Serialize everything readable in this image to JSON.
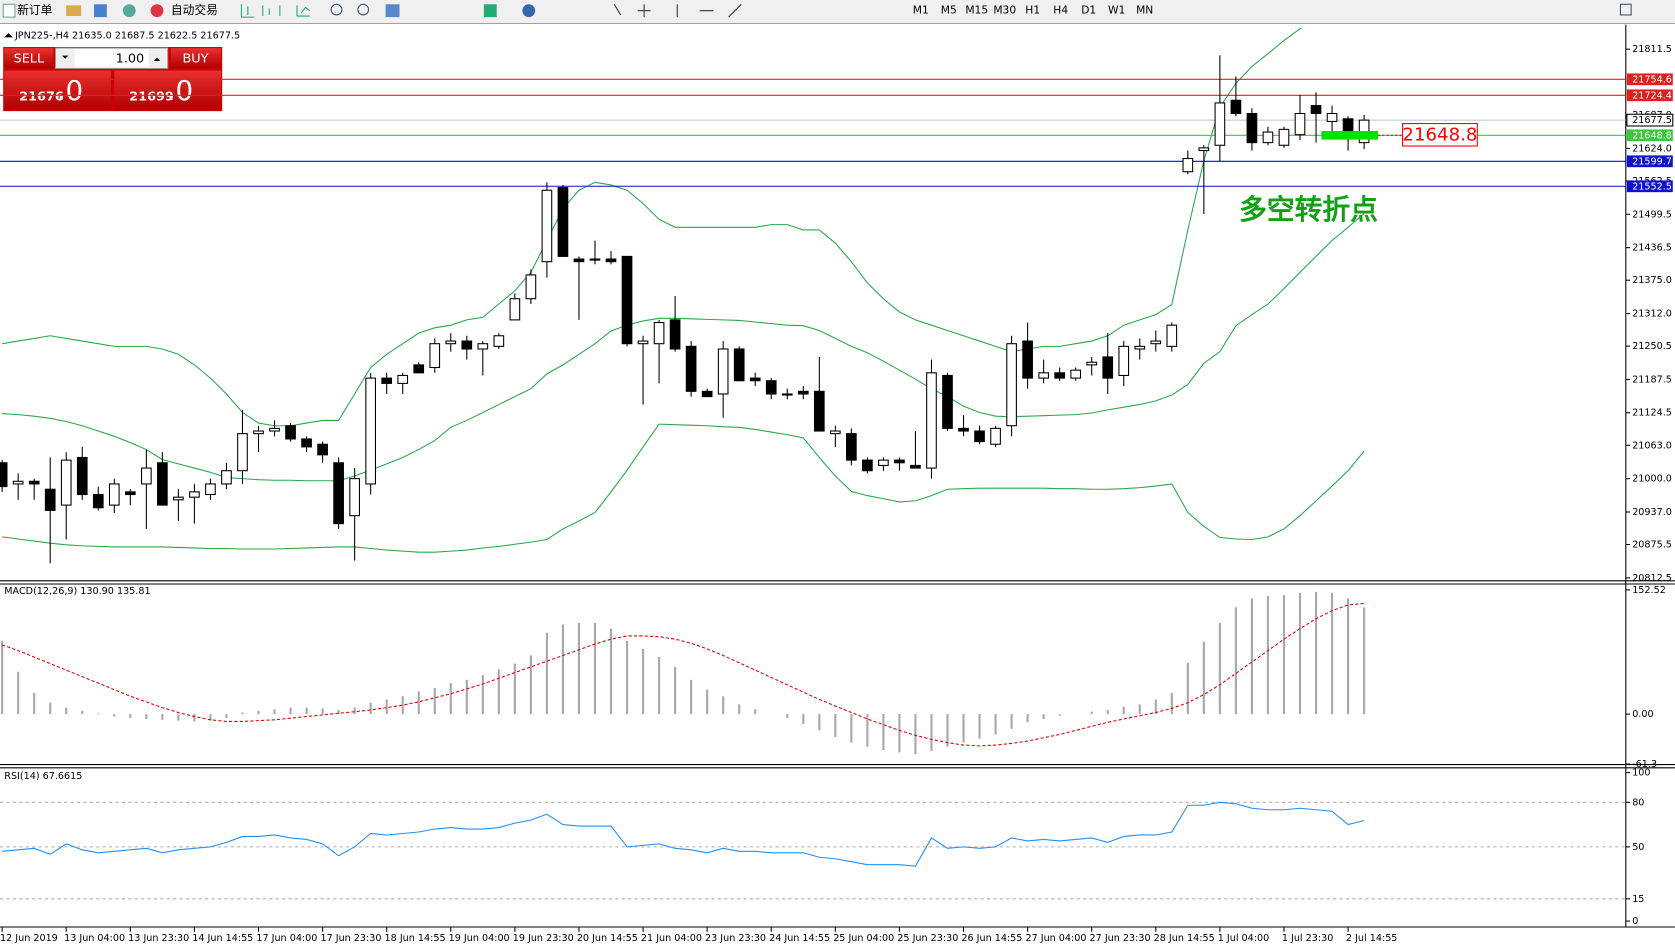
{
  "toolbar": {
    "new_order": "新订单",
    "auto_trading": "自动交易",
    "timeframes": [
      "M1",
      "M5",
      "M15",
      "M30",
      "H1",
      "H4",
      "D1",
      "W1",
      "MN"
    ]
  },
  "trade_panel": {
    "sell": "SELL",
    "buy": "BUY",
    "lots": "1.00",
    "bid_main": "21676",
    "bid_frac": ".0",
    "ask_main": "21699",
    "ask_frac": ".0"
  },
  "chart_data": [
    {
      "type": "candlestick",
      "title": "JPN225-,H4  21635.0 21687.5 21622.5 21677.5",
      "categories": [
        "12 Jun 2019",
        null,
        null,
        null,
        "13 Jun 04:00",
        null,
        null,
        null,
        "13 Jun 23:30",
        null,
        null,
        null,
        "14 Jun 14:55",
        null,
        null,
        null,
        "17 Jun 04:00",
        null,
        null,
        null,
        "17 Jun 23:30",
        null,
        null,
        null,
        "18 Jun 14:55",
        null,
        null,
        null,
        "19 Jun 04:00",
        null,
        null,
        null,
        "19 Jun 23:30",
        null,
        null,
        null,
        "20 Jun 14:55",
        null,
        null,
        null,
        "21 Jun 04:00",
        null,
        null,
        null,
        "23 Jun 23:30",
        null,
        null,
        null,
        "24 Jun 14:55",
        null,
        null,
        null,
        "25 Jun 04:00",
        null,
        null,
        null,
        "25 Jun 23:30",
        null,
        null,
        null,
        "26 Jun 14:55",
        null,
        null,
        null,
        "27 Jun 04:00",
        null,
        null,
        null,
        "27 Jun 23:30",
        null,
        null,
        null,
        "28 Jun 14:55",
        null,
        null,
        null,
        "1 Jul 04:00",
        null,
        null,
        null,
        "1 Jul 23:30",
        null,
        null,
        null,
        "2 Jul 14:55",
        null
      ],
      "open": [
        21030,
        20990,
        20995,
        20980,
        20950,
        21040,
        20970,
        20950,
        20975,
        20990,
        21030,
        20960,
        20965,
        20970,
        20990,
        21015,
        21085,
        21090,
        21100,
        21075,
        21065,
        21030,
        20930,
        20990,
        21190,
        21180,
        21215,
        21210,
        21255,
        21260,
        21245,
        21250,
        21300,
        21340,
        21410,
        21550,
        21415,
        21415,
        21415,
        21420,
        21255,
        21255,
        21300,
        21250,
        21165,
        21160,
        21245,
        21190,
        21185,
        21160,
        21165,
        21165,
        21085,
        21085,
        21035,
        21025,
        21035,
        21025,
        21020,
        21195,
        21095,
        21090,
        21065,
        21100,
        21260,
        21190,
        21200,
        21190,
        21215,
        21230,
        21195,
        21245,
        21255,
        21250,
        21580,
        21620,
        21630,
        21715,
        21690,
        21635,
        21630,
        21650,
        21705,
        21675,
        21680,
        21635
      ],
      "high": [
        21035,
        21010,
        21000,
        21040,
        21050,
        21060,
        20985,
        21000,
        20980,
        21055,
        21050,
        20980,
        20990,
        21000,
        21030,
        21130,
        21100,
        21110,
        21105,
        21080,
        21070,
        21040,
        21020,
        21200,
        21200,
        21200,
        21220,
        21265,
        21275,
        21270,
        21260,
        21275,
        21350,
        21395,
        21560,
        21555,
        21420,
        21450,
        21430,
        21420,
        21270,
        21300,
        21345,
        21260,
        21170,
        21260,
        21250,
        21200,
        21190,
        21170,
        21175,
        21230,
        21100,
        21095,
        21040,
        21040,
        21040,
        21090,
        21225,
        21200,
        21120,
        21100,
        21100,
        21270,
        21295,
        21225,
        21210,
        21210,
        21230,
        21275,
        21260,
        21265,
        21280,
        21295,
        21620,
        21630,
        21800,
        21760,
        21700,
        21665,
        21665,
        21725,
        21730,
        21705,
        21685,
        21687.5
      ],
      "low": [
        20975,
        20960,
        20960,
        20840,
        20885,
        20960,
        20940,
        20935,
        20950,
        20905,
        20950,
        20920,
        20915,
        20960,
        20980,
        20990,
        21050,
        21080,
        21070,
        21050,
        21030,
        20905,
        20845,
        20970,
        21160,
        21160,
        21200,
        21200,
        21240,
        21225,
        21195,
        21245,
        21300,
        21330,
        21380,
        21420,
        21300,
        21405,
        21405,
        21250,
        21140,
        21180,
        21240,
        21155,
        21155,
        21115,
        21185,
        21175,
        21150,
        21150,
        21150,
        21090,
        21060,
        21025,
        21010,
        21015,
        21015,
        21020,
        21000,
        21090,
        21080,
        21065,
        21060,
        21080,
        21170,
        21180,
        21185,
        21185,
        21195,
        21160,
        21175,
        21225,
        21240,
        21240,
        21575,
        21500,
        21600,
        21685,
        21620,
        21630,
        21625,
        21640,
        21635,
        21655,
        21620,
        21622.5
      ],
      "close": [
        20985,
        20995,
        20990,
        20940,
        21035,
        20970,
        20945,
        20990,
        20970,
        21020,
        20950,
        20965,
        20975,
        20990,
        21015,
        21085,
        21090,
        21095,
        21075,
        21060,
        21045,
        20915,
        21000,
        21190,
        21180,
        21195,
        21200,
        21255,
        21260,
        21245,
        21255,
        21270,
        21340,
        21385,
        21545,
        21420,
        21410,
        21415,
        21410,
        21255,
        21260,
        21295,
        21245,
        21165,
        21155,
        21245,
        21185,
        21185,
        21160,
        21160,
        21160,
        21090,
        21090,
        21035,
        21015,
        21035,
        21030,
        21020,
        21200,
        21095,
        21090,
        21070,
        21095,
        21255,
        21190,
        21200,
        21190,
        21205,
        21220,
        21190,
        21250,
        21250,
        21260,
        21290,
        21605,
        21625,
        21710,
        21690,
        21635,
        21655,
        21660,
        21690,
        21690,
        21690,
        21650,
        21677.5
      ],
      "bollinger": {
        "color": "#2aa84a",
        "upper": [
          21255,
          21260,
          21265,
          21270,
          21265,
          21260,
          21255,
          21250,
          21250,
          21250,
          21245,
          21235,
          21215,
          21190,
          21160,
          21125,
          21105,
          21100,
          21100,
          21105,
          21110,
          21110,
          21160,
          21210,
          21235,
          21255,
          21275,
          21285,
          21290,
          21300,
          21305,
          21330,
          21355,
          21390,
          21450,
          21510,
          21545,
          21560,
          21555,
          21545,
          21520,
          21490,
          21475,
          21475,
          21475,
          21475,
          21475,
          21475,
          21480,
          21480,
          21470,
          21470,
          21445,
          21410,
          21370,
          21340,
          21315,
          21300,
          21290,
          21280,
          21270,
          21260,
          21250,
          21240,
          21245,
          21250,
          21250,
          21255,
          21260,
          21270,
          21290,
          21300,
          21310,
          21329,
          21470,
          21601,
          21702,
          21747,
          21779,
          21803,
          21828,
          21850,
          21875,
          21900,
          21925,
          21950
        ],
        "middle": [
          21123,
          21121,
          21118,
          21114,
          21108,
          21100,
          21090,
          21080,
          21068,
          21055,
          21036,
          21028,
          21020,
          21012,
          21002,
          21000,
          20998,
          20997,
          20997,
          20996,
          20996,
          20996,
          21005,
          21016,
          21028,
          21040,
          21055,
          21072,
          21097,
          21110,
          21125,
          21140,
          21155,
          21170,
          21198,
          21215,
          21235,
          21255,
          21279,
          21290,
          21298,
          21303,
          21303,
          21302,
          21301,
          21300,
          21299,
          21296,
          21293,
          21290,
          21289,
          21280,
          21265,
          21250,
          21238,
          21222,
          21205,
          21188,
          21170,
          21155,
          21137,
          21125,
          21118,
          21117,
          21118,
          21119,
          21120,
          21121,
          21124,
          21130,
          21135,
          21140,
          21147,
          21158,
          21178,
          21218,
          21240,
          21289,
          21310,
          21330,
          21359,
          21390,
          21420,
          21450,
          21475,
          21501
        ],
        "lower": [
          20890,
          20886,
          20882,
          20878,
          20875,
          20873,
          20872,
          20871,
          20871,
          20871,
          20871,
          20870,
          20869,
          20868,
          20868,
          20867,
          20867,
          20867,
          20868,
          20869,
          20870,
          20871,
          20871,
          20868,
          20865,
          20863,
          20861,
          20861,
          20863,
          20865,
          20869,
          20872,
          20876,
          20880,
          20885,
          20905,
          20920,
          20936,
          20975,
          21016,
          21060,
          21103,
          21102,
          21101,
          21100,
          21098,
          21097,
          21093,
          21088,
          21083,
          21077,
          21040,
          21005,
          20976,
          20968,
          20962,
          20956,
          20958,
          20968,
          20980,
          20981,
          20982,
          20982,
          20982,
          20982,
          20982,
          20981,
          20981,
          20980,
          20980,
          20981,
          20983,
          20986,
          20990,
          20936,
          20910,
          20889,
          20886,
          20885,
          20890,
          20905,
          20930,
          20958,
          20986,
          21015,
          21052
        ]
      },
      "ylim": [
        20808,
        21852
      ],
      "yticks": [
        21811.5,
        {
          "value": 21687.0,
          "label": "21687.0"
        },
        {
          "value": 21624.0,
          "label": "21624.0"
        },
        21562.5,
        21499.5,
        21436.5,
        {
          "value": 21375.0,
          "label": "21375.0"
        },
        {
          "value": 21312.0,
          "label": "21312.0"
        },
        21250.5,
        21187.5,
        21124.5,
        {
          "value": 21063.0,
          "label": "21063.0"
        },
        {
          "value": 21000.0,
          "label": "21000.0"
        },
        {
          "value": 20937.0,
          "label": "20937.0"
        },
        20875.5,
        20812.5
      ],
      "levels": [
        {
          "value": 21754.6,
          "color": "#e02020",
          "text_color": "#ffffff"
        },
        {
          "value": 21724.4,
          "color": "#e02020",
          "text_color": "#ffffff"
        },
        {
          "value": 21677.5,
          "color": "#c0c0c0",
          "text_color": "#000000"
        },
        {
          "value": 21648.8,
          "color": "#3cc83c",
          "text_color": "#ffffff"
        },
        {
          "value": 21599.7,
          "color": "#1010d0",
          "text_color": "#ffffff"
        },
        {
          "value": 21552.5,
          "color": "#1010d0",
          "text_color": "#ffffff"
        }
      ],
      "callout": {
        "value": 21648.8,
        "color": "#ff0000",
        "marker_color": "#00e000"
      },
      "annotations": [
        {
          "text": "多空转折点",
          "color": "#14a014"
        }
      ]
    },
    {
      "type": "macd",
      "title": "MACD(12,26,9) 130.90 135.81",
      "values": [
        90,
        52,
        26,
        14,
        8,
        4,
        1,
        -3,
        -5,
        -6,
        -7,
        -8,
        -9,
        -8,
        -5,
        2,
        4,
        6,
        8,
        8,
        7,
        5,
        8,
        14,
        18,
        22,
        28,
        32,
        38,
        42,
        48,
        55,
        62,
        72,
        100,
        110,
        112,
        112,
        105,
        90,
        80,
        70,
        58,
        42,
        30,
        22,
        12,
        6,
        0,
        -5,
        -12,
        -20,
        -28,
        -35,
        -40,
        -44,
        -47,
        -49,
        -45,
        -40,
        -35,
        -30,
        -25,
        -18,
        -10,
        -6,
        -2,
        0,
        3,
        5,
        9,
        12,
        18,
        26,
        63,
        89,
        112,
        131,
        142,
        145,
        146,
        149,
        150,
        149,
        142,
        130.9
      ],
      "signal": [
        85,
        78,
        70,
        62,
        54,
        46,
        38,
        30,
        22,
        15,
        8,
        2,
        -3,
        -7,
        -9,
        -9,
        -8,
        -7,
        -5,
        -3,
        -1,
        1,
        3,
        5,
        8,
        11,
        15,
        20,
        25,
        31,
        37,
        44,
        51,
        58,
        65,
        72,
        79,
        86,
        92,
        96,
        96,
        95,
        92,
        87,
        80,
        72,
        63,
        54,
        45,
        36,
        27,
        18,
        10,
        2,
        -6,
        -13,
        -20,
        -26,
        -31,
        -35,
        -38,
        -39,
        -38,
        -36,
        -33,
        -29,
        -25,
        -20,
        -15,
        -10,
        -6,
        -2,
        2,
        7,
        14,
        24,
        36,
        50,
        64,
        78,
        92,
        105,
        117,
        127,
        134,
        135.81
      ],
      "color": "#a8a8a8",
      "signal_color": "#e00000",
      "ylim": [
        -61.3,
        160.4
      ],
      "yticks": [
        152.52,
        {
          "value": 0,
          "label": "0.00"
        },
        -61.3
      ]
    },
    {
      "type": "line",
      "title": "RSI(14) 67.6615",
      "values": [
        47,
        48,
        49,
        45,
        52,
        48,
        46,
        47,
        48,
        49,
        46,
        48,
        49,
        50,
        53,
        57,
        57,
        58,
        56,
        55,
        52,
        44,
        50,
        59,
        58,
        59,
        60,
        62,
        63,
        62,
        62,
        63,
        66,
        68,
        72,
        65,
        64,
        64,
        64,
        50,
        51,
        52,
        49,
        48,
        46,
        49,
        47,
        47,
        46,
        46,
        46,
        43,
        42,
        40,
        38,
        38,
        38,
        37,
        56,
        49,
        50,
        49,
        50,
        56,
        54,
        55,
        54,
        55,
        56,
        53,
        57,
        58,
        58,
        60,
        78,
        78,
        80,
        79,
        76,
        75,
        75,
        76,
        75,
        74,
        65,
        67.6615
      ],
      "color": "#1e90ff",
      "ylim": [
        -2.9,
        103.6
      ],
      "yticks": [
        100,
        80,
        50,
        15,
        0
      ],
      "levels": [
        80,
        50,
        15
      ]
    }
  ]
}
